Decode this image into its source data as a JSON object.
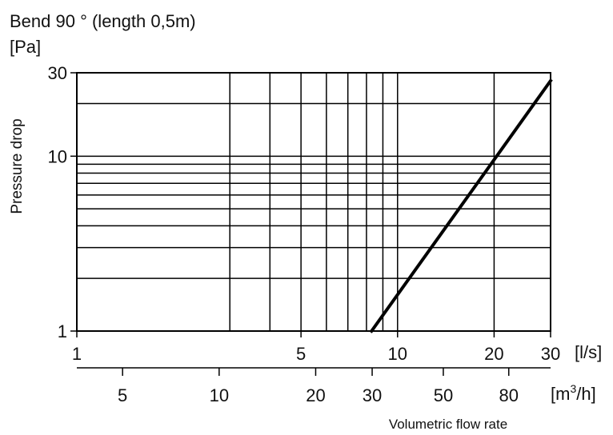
{
  "chart_data": {
    "type": "line",
    "title": "Bend 90 ° (length 0,5m)",
    "ylabel": "Pressure drop",
    "yunit": "[Pa]",
    "xlabel": "Volumetric flow rate",
    "x_scale": "log",
    "y_scale": "log",
    "xlim": [
      1,
      30
    ],
    "ylim": [
      1,
      30
    ],
    "grid": true,
    "x_gridlines": [
      3,
      4,
      5,
      6,
      7,
      8,
      9,
      10,
      20,
      30
    ],
    "y_gridlines": [
      1,
      2,
      3,
      4,
      5,
      6,
      7,
      8,
      9,
      10,
      20,
      30
    ],
    "x_ticks": [
      {
        "value": 1,
        "label": "1"
      },
      {
        "value": 5,
        "label": "5"
      },
      {
        "value": 10,
        "label": "10"
      },
      {
        "value": 20,
        "label": "20"
      },
      {
        "value": 30,
        "label": "30"
      }
    ],
    "x_unit": "[l/s]",
    "y_ticks": [
      {
        "value": 1,
        "label": "1"
      },
      {
        "value": 10,
        "label": "10"
      },
      {
        "value": 30,
        "label": "30"
      }
    ],
    "secondary_x_ticks": [
      {
        "value": 5,
        "label": "5"
      },
      {
        "value": 10,
        "label": "10"
      },
      {
        "value": 20,
        "label": "20"
      },
      {
        "value": 30,
        "label": "30"
      },
      {
        "value": 50,
        "label": "50"
      },
      {
        "value": 80,
        "label": "80"
      }
    ],
    "secondary_x_unit_base": "[m",
    "secondary_x_unit_sup": "3",
    "secondary_x_unit_tail": "/h]",
    "series": [
      {
        "x": [
          8.3,
          30
        ],
        "y": [
          1,
          27
        ],
        "color": "#000000"
      }
    ]
  }
}
